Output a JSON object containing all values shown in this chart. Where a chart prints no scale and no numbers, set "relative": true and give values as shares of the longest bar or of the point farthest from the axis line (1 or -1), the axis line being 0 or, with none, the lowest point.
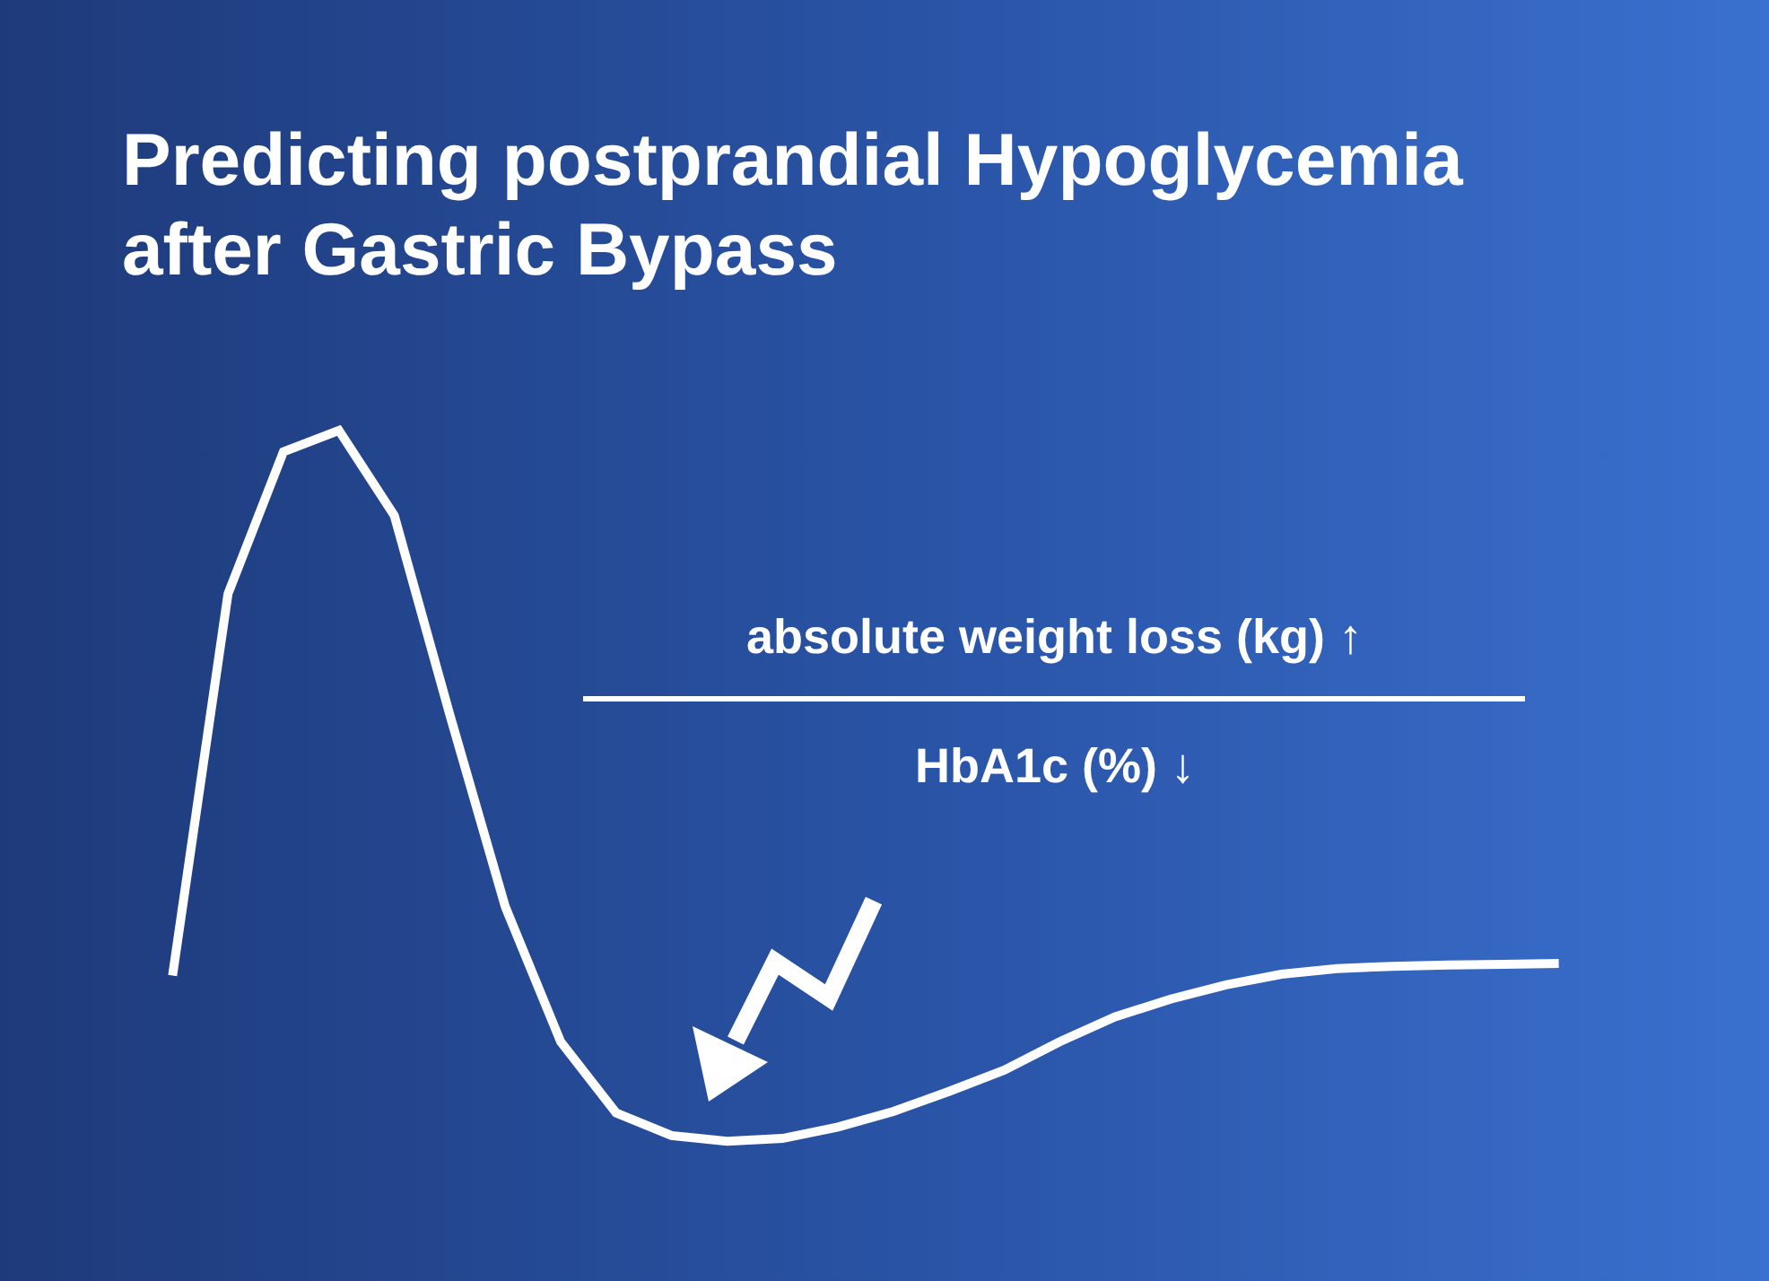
{
  "chart_data": {
    "type": "line",
    "relative": true,
    "title": "Predicting postprandial Hypoglycemia after Gastric Bypass",
    "categories": [
      null,
      null,
      null,
      null,
      null,
      null,
      null,
      null,
      null,
      null,
      null,
      null,
      null,
      null,
      null,
      null,
      null,
      null,
      null,
      null,
      null,
      null,
      null,
      null,
      null,
      null
    ],
    "series": [
      {
        "color": "#ffffff",
        "values": [
          0.233,
          0.77,
          0.97,
          1,
          0.88,
          0.6,
          0.33,
          0.14,
          0.04,
          0.008,
          0,
          0.004,
          0.02,
          0.042,
          0.07,
          0.1,
          0.14,
          0.175,
          0.2,
          0.22,
          0.235,
          0.243,
          0.246,
          0.248,
          0.249,
          0.25
        ]
      }
    ],
    "annotations": [
      "absolute weight loss (kg) ↑",
      "HbA1c (%) ↓"
    ],
    "marker": "none",
    "line_style": "solid",
    "legend": false
  }
}
